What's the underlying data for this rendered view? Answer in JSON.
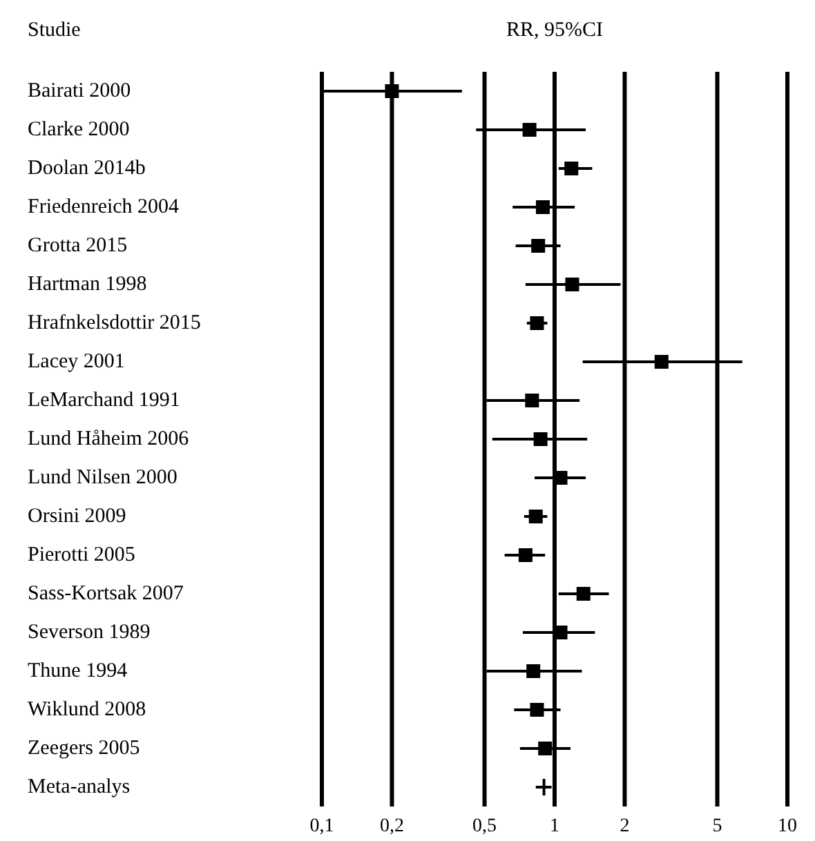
{
  "chart_data": {
    "type": "scatter",
    "orientation": "horizontal",
    "title": "RR, 95%CI",
    "ylabel": "Studie",
    "categories": [
      "Bairati 2000",
      "Clarke 2000",
      "Doolan 2014b",
      "Friedenreich 2004",
      "Grotta 2015",
      "Hartman 1998",
      "Hrafnkelsdottir 2015",
      "Lacey 2001",
      "LeMarchand 1991",
      "Lund Håheim 2006",
      "Lund Nilsen 2000",
      "Orsini 2009",
      "Pierotti 2005",
      "Sass-Kortsak 2007",
      "Severson 1989",
      "Thune 1994",
      "Wiklund 2008",
      "Zeegers 2005",
      "Meta-analys"
    ],
    "series": [
      {
        "color": "#000000",
        "marker": "square",
        "values": [
          0.2,
          0.78,
          1.18,
          0.89,
          0.85,
          1.19,
          0.84,
          2.88,
          0.8,
          0.87,
          1.06,
          0.83,
          0.75,
          1.33,
          1.06,
          0.81,
          0.84,
          0.91,
          null
        ],
        "errors": [
          [
            0.1,
            0.4
          ],
          [
            0.46,
            1.36
          ],
          [
            1.04,
            1.45
          ],
          [
            0.66,
            1.22
          ],
          [
            0.68,
            1.06
          ],
          [
            0.75,
            1.92
          ],
          [
            0.76,
            0.93
          ],
          [
            1.32,
            6.4
          ],
          [
            0.51,
            1.28
          ],
          [
            0.54,
            1.38
          ],
          [
            0.82,
            1.36
          ],
          [
            0.74,
            0.93
          ],
          [
            0.61,
            0.91
          ],
          [
            1.04,
            1.71
          ],
          [
            0.73,
            1.49
          ],
          [
            0.51,
            1.31
          ],
          [
            0.67,
            1.06
          ],
          [
            0.71,
            1.17
          ],
          null
        ]
      },
      {
        "color": "#000000",
        "marker": "cross",
        "values": [
          null,
          null,
          null,
          null,
          null,
          null,
          null,
          null,
          null,
          null,
          null,
          null,
          null,
          null,
          null,
          null,
          null,
          null,
          0.9
        ],
        "errors": [
          null,
          null,
          null,
          null,
          null,
          null,
          null,
          null,
          null,
          null,
          null,
          null,
          null,
          null,
          null,
          null,
          null,
          null,
          [
            0.83,
            0.97
          ]
        ]
      }
    ],
    "xlim": [
      0.1,
      10
    ],
    "xticks": [
      {
        "value": 0.1,
        "label": "0,1"
      },
      {
        "value": 0.2,
        "label": "0,2"
      },
      {
        "value": 0.5,
        "label": "0,5"
      },
      1,
      2,
      5,
      10
    ],
    "log": "x",
    "grid": "x"
  }
}
